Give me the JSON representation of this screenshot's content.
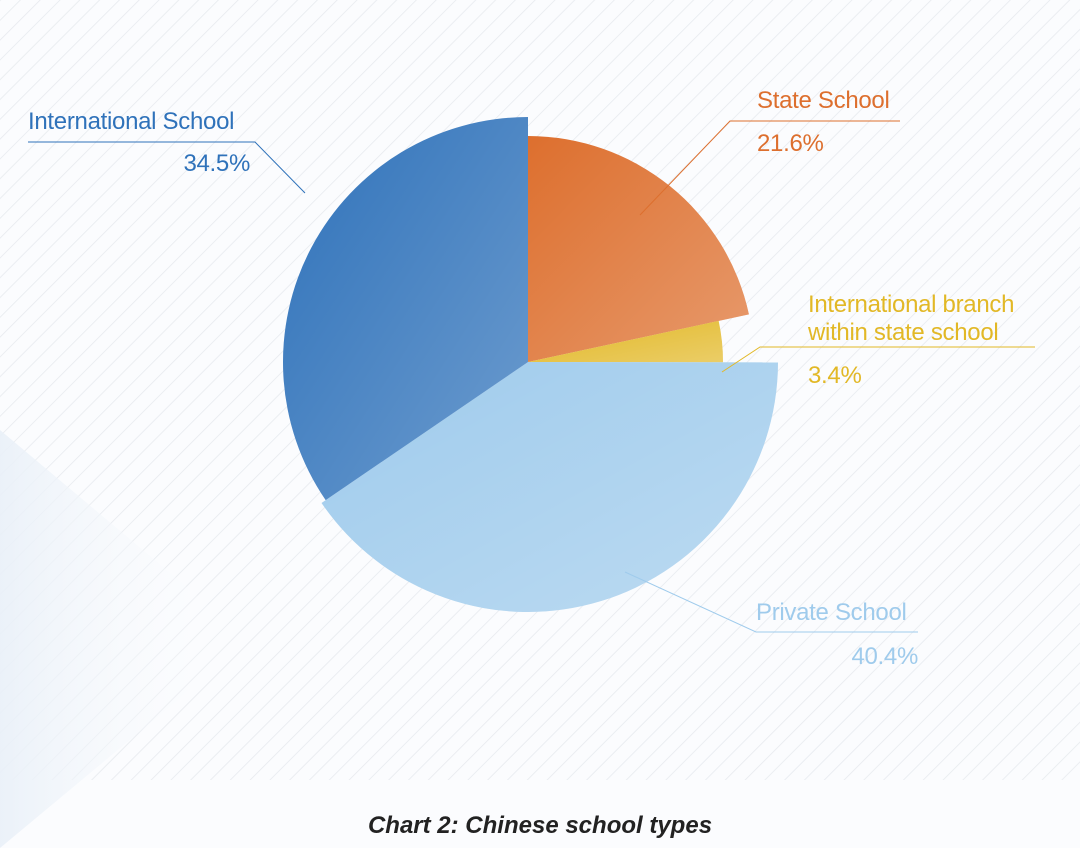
{
  "chart_data": {
    "type": "pie",
    "title": "Chart 2: Chinese school types",
    "categories": [
      "State School",
      "International branch within state school",
      "Private School",
      "International School"
    ],
    "values": [
      21.6,
      3.4,
      40.4,
      34.5
    ],
    "value_labels": [
      "21.6%",
      "3.4%",
      "40.4%",
      "34.5%"
    ],
    "colors": [
      "#dd6f2e",
      "#e2b826",
      "#9fcbec",
      "#2f72ba"
    ]
  }
}
